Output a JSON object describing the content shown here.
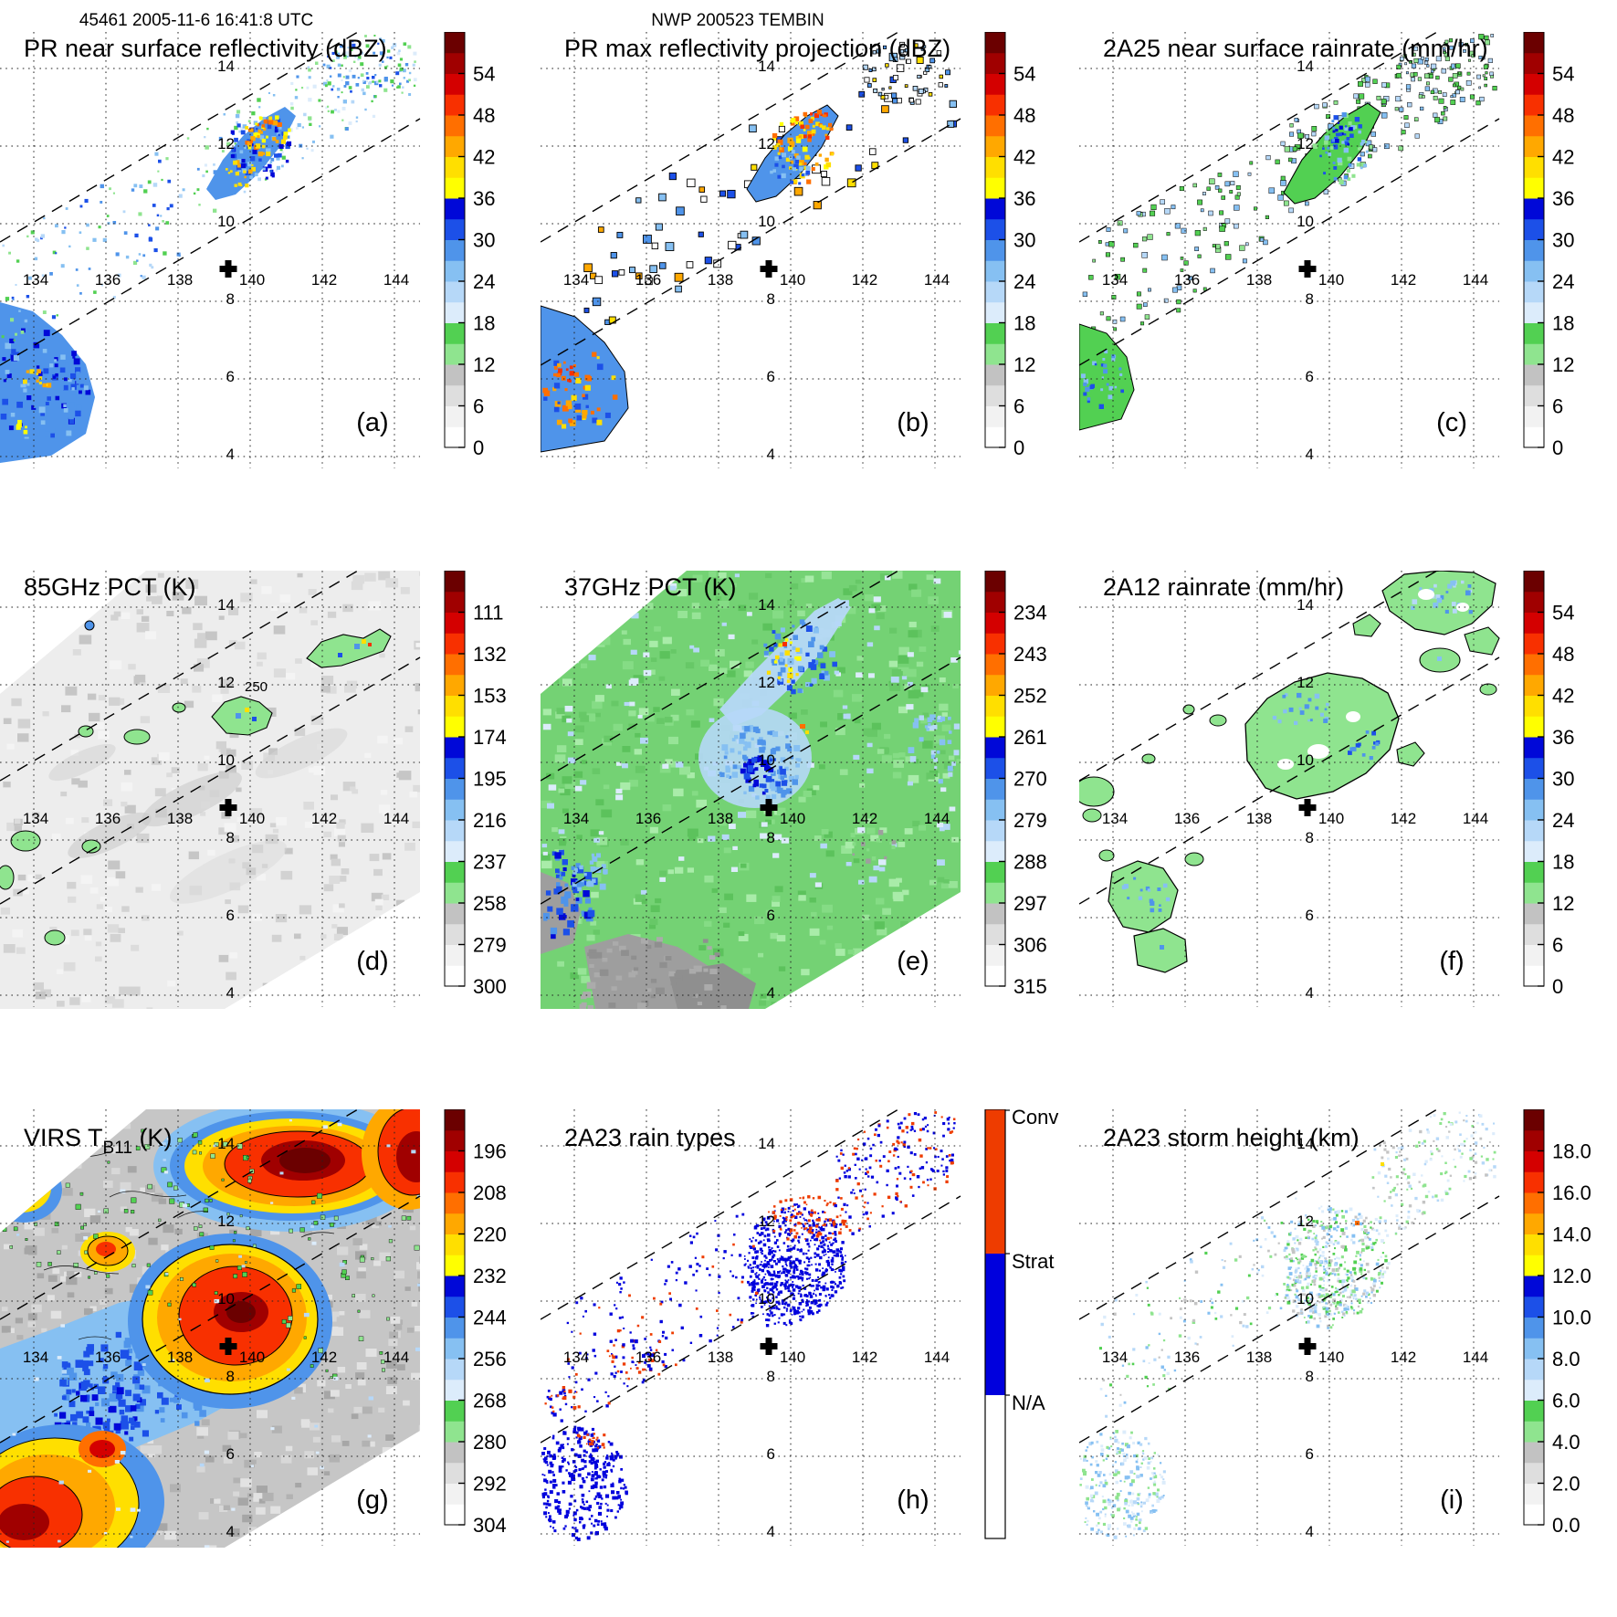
{
  "header": {
    "left": "45461 2005-11-6 16:41:8 UTC",
    "center": "NWP 200523 TEMBIN"
  },
  "axes": {
    "lon_ticks": [
      "134",
      "136",
      "138",
      "140",
      "142",
      "144"
    ],
    "lat_ticks": [
      "14",
      "12",
      "10",
      "8",
      "6",
      "4"
    ]
  },
  "colorbar_colors_bottom_to_top": [
    "#ffffff",
    "#f2f2f2",
    "#dedede",
    "#c2c2c2",
    "#8fe48f",
    "#52d052",
    "#dcecfb",
    "#b6d8f8",
    "#86c0f2",
    "#4f94ea",
    "#1c50e8",
    "#0008d8",
    "#ffff00",
    "#ffdf00",
    "#ffa800",
    "#ff6f00",
    "#f83000",
    "#d40000",
    "#a00000",
    "#6b0000"
  ],
  "rain_type_bar": {
    "segments": [
      {
        "label": "Conv",
        "color": "#ee3c00"
      },
      {
        "label": "Strat",
        "color": "#0000dd"
      },
      {
        "label": "N/A",
        "color": "#ffffff"
      }
    ]
  },
  "panels": [
    {
      "id": "a",
      "title": "PR near surface reflectivity (dBZ)",
      "letter": "(a)",
      "cbar": "grad",
      "ticks": [
        "54",
        "48",
        "42",
        "36",
        "30",
        "24",
        "18",
        "12",
        "6",
        "0"
      ]
    },
    {
      "id": "b",
      "title": "PR max reflectivity projection (dBZ)",
      "letter": "(b)",
      "cbar": "grad",
      "ticks": [
        "54",
        "48",
        "42",
        "36",
        "30",
        "24",
        "18",
        "12",
        "6",
        "0"
      ]
    },
    {
      "id": "c",
      "title": "2A25 near surface rainrate (mm/hr)",
      "letter": "(c)",
      "cbar": "grad",
      "ticks": [
        "54",
        "48",
        "42",
        "36",
        "30",
        "24",
        "18",
        "12",
        "6",
        "0"
      ]
    },
    {
      "id": "d",
      "title": "85GHz PCT (K)",
      "letter": "(d)",
      "cbar": "grad",
      "ticks": [
        "111",
        "132",
        "153",
        "174",
        "195",
        "216",
        "237",
        "258",
        "279",
        "300"
      ],
      "contour_label": "250"
    },
    {
      "id": "e",
      "title": "37GHz PCT (K)",
      "letter": "(e)",
      "cbar": "grad",
      "ticks": [
        "234",
        "243",
        "252",
        "261",
        "270",
        "279",
        "288",
        "297",
        "306",
        "315"
      ]
    },
    {
      "id": "f",
      "title": "2A12 rainrate (mm/hr)",
      "letter": "(f)",
      "cbar": "grad",
      "ticks": [
        "54",
        "48",
        "42",
        "36",
        "30",
        "24",
        "18",
        "12",
        "6",
        "0"
      ]
    },
    {
      "id": "g",
      "title": "VIRS T",
      "title_sub": "B11",
      "title_tail": " (K)",
      "letter": "(g)",
      "cbar": "grad",
      "ticks": [
        "196",
        "208",
        "220",
        "232",
        "244",
        "256",
        "268",
        "280",
        "292",
        "304"
      ]
    },
    {
      "id": "h",
      "title": "2A23 rain types",
      "letter": "(h)",
      "cbar": "cat"
    },
    {
      "id": "i",
      "title": "2A23 storm height (km)",
      "letter": "(i)",
      "cbar": "grad",
      "ticks": [
        "18.0",
        "16.0",
        "14.0",
        "12.0",
        "10.0",
        "8.0",
        "6.0",
        "4.0",
        "2.0",
        "0.0"
      ]
    }
  ],
  "chart_data": [
    {
      "panel": "(a)",
      "type": "heatmap",
      "title": "PR near surface reflectivity (dBZ)",
      "units": "dBZ",
      "colorbar_ticks": [
        54,
        48,
        42,
        36,
        30,
        24,
        18,
        12,
        6,
        0
      ],
      "lon_range": [
        133.1,
        144.7
      ],
      "lat_range": [
        3.6,
        14.9
      ],
      "lon_gridlines": [
        134,
        136,
        138,
        140,
        142,
        144
      ],
      "lat_gridlines": [
        14,
        12,
        10,
        8,
        6,
        4
      ],
      "storm_center_marker": {
        "lon": 139.4,
        "lat": 8.9
      },
      "features": "Rainband echoes 18-48 dBZ along narrow TRMM PR swath (dashed edges) from ~134E/10N to ~142E/14N; strongest cells 36-48 dBZ near 139.5-140.5E/11.5-12.5N; isolated cell cluster near 133.5E/6.5-7N"
    },
    {
      "panel": "(b)",
      "type": "heatmap",
      "title": "PR max reflectivity projection (dBZ)",
      "units": "dBZ",
      "colorbar_ticks": [
        54,
        48,
        42,
        36,
        30,
        24,
        18,
        12,
        6,
        0
      ],
      "lon_range": [
        133.1,
        144.7
      ],
      "lat_range": [
        3.6,
        14.9
      ],
      "storm_center_marker": {
        "lon": 139.4,
        "lat": 8.9
      },
      "features": "Same rainband with larger echo coverage and black echo outlines; maxima >42 dBZ (yellow/orange) near 139.5-140.5E/11.5-12.5N; outlined cell near 133.5E/6.5N"
    },
    {
      "panel": "(c)",
      "type": "heatmap",
      "title": "2A25 near surface rainrate (mm/hr)",
      "units": "mm/hr",
      "colorbar_ticks": [
        54,
        48,
        42,
        36,
        30,
        24,
        18,
        12,
        6,
        0
      ],
      "lon_range": [
        133.1,
        144.7
      ],
      "lat_range": [
        3.6,
        14.9
      ],
      "storm_center_marker": {
        "lon": 139.4,
        "lat": 8.9
      },
      "features": "Rainrates mostly 6-24 mm/hr (green with embedded blue) along the PR swath rainband, black contour outlines"
    },
    {
      "panel": "(d)",
      "type": "heatmap",
      "title": "85GHz PCT (K)",
      "units": "K",
      "colorbar_ticks": [
        111,
        132,
        153,
        174,
        195,
        216,
        237,
        258,
        279,
        300
      ],
      "lon_range": [
        133.1,
        144.7
      ],
      "lat_range": [
        3.6,
        14.9
      ],
      "storm_center_marker": {
        "lon": 139.4,
        "lat": 8.9
      },
      "contour_label": "250",
      "features": "Wide TMI swath mostly 280-300 K (light gray); small ice-scattering cells ~220-260 K (green/blue) near 139-141E/11.5-12.5N and 139.5-140.5E/9.5-10N; 250 K contour labeled"
    },
    {
      "panel": "(e)",
      "type": "heatmap",
      "title": "37GHz PCT (K)",
      "units": "K",
      "colorbar_ticks": [
        234,
        243,
        252,
        261,
        270,
        279,
        288,
        297,
        306,
        315
      ],
      "lon_range": [
        133.1,
        144.7
      ],
      "lat_range": [
        3.6,
        14.9
      ],
      "storm_center_marker": {
        "lon": 139.4,
        "lat": 8.9
      },
      "features": "Background ~288-297 K (green) with gray >297 K patches southwest; PCT depressions 261-279 K (blue) in rainband; minima ~255-265 K (yellow dots) near 139.5-140.5E/11.5-12.5N"
    },
    {
      "panel": "(f)",
      "type": "heatmap",
      "title": "2A12 rainrate (mm/hr)",
      "units": "mm/hr",
      "colorbar_ticks": [
        54,
        48,
        42,
        36,
        30,
        24,
        18,
        12,
        6,
        0
      ],
      "lon_range": [
        133.1,
        144.7
      ],
      "lat_range": [
        3.6,
        14.9
      ],
      "storm_center_marker": {
        "lon": 139.4,
        "lat": 8.9
      },
      "features": "Black-outlined light-rain areas 0-12 mm/hr (green) with embedded 12-30 mm/hr (blue) cells; large rain shield around 139-141.5E/8.5-10.5N and band toward 142-144.5E/12-14N"
    },
    {
      "panel": "(g)",
      "type": "heatmap",
      "title": "VIRS TB11 (K)",
      "units": "K",
      "colorbar_ticks": [
        196,
        208,
        220,
        232,
        244,
        256,
        268,
        280,
        292,
        304
      ],
      "lon_range": [
        133.1,
        144.7
      ],
      "lat_range": [
        3.6,
        14.9
      ],
      "storm_center_marker": {
        "lon": 139.4,
        "lat": 8.9
      },
      "features": "Cold cloud shields TB11 < 220 K (red/dark red) centered near 139.5-141.5E/8.5-10.5N, 139-142E/11.5-13N, upper-right corner, and lower-left corner; 232-256 K (blue) fringes; warm gray background 268-300 K with black contours and scattered green pixels"
    },
    {
      "panel": "(h)",
      "type": "categorical_map",
      "title": "2A23 rain types",
      "categories": [
        "Conv",
        "Strat",
        "N/A"
      ],
      "lon_range": [
        133.1,
        144.7
      ],
      "lat_range": [
        3.6,
        14.9
      ],
      "storm_center_marker": {
        "lon": 139.4,
        "lat": 8.9
      },
      "features": "Mostly stratiform (blue) pixels along PR swath rainband; convective (orange-red) pixels at NE end of band and along leading edge; stratiform patch near 133.5E/6.5N"
    },
    {
      "panel": "(i)",
      "type": "heatmap",
      "title": "2A23 storm height (km)",
      "units": "km",
      "colorbar_ticks": [
        18.0,
        16.0,
        14.0,
        12.0,
        10.0,
        8.0,
        6.0,
        4.0,
        2.0,
        0.0
      ],
      "lon_range": [
        133.1,
        144.7
      ],
      "lat_range": [
        3.6,
        14.9
      ],
      "storm_center_marker": {
        "lon": 139.4,
        "lat": 8.9
      },
      "features": "Storm heights mostly 4-10 km (gray/green/light blue) scattered along the PR swath; isolated deeper tops near 139.5-140.5E/11.5-12.5N"
    }
  ]
}
